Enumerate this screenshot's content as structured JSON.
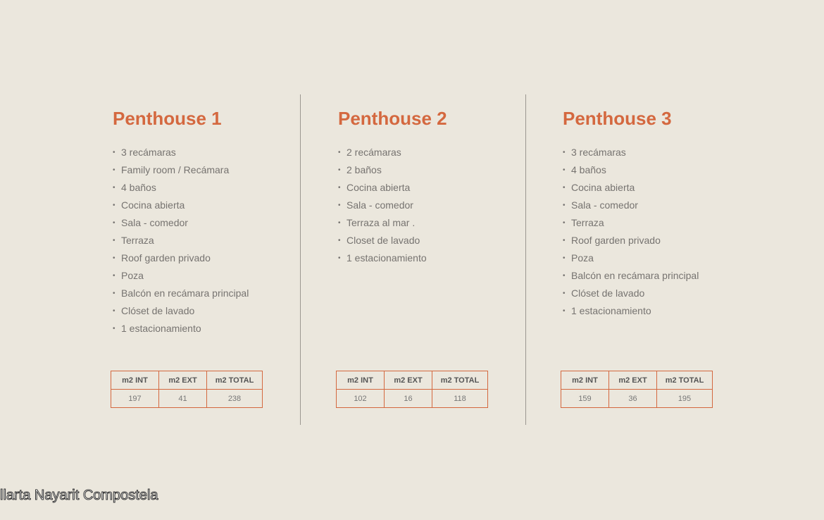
{
  "columns": [
    {
      "title": "Penthouse 1",
      "features": [
        "3 recámaras",
        "Family room / Recámara",
        "4 baños",
        "Cocina abierta",
        "Sala - comedor",
        "Terraza",
        "Roof garden privado",
        "Poza",
        "Balcón en recámara principal",
        "Clóset de lavado",
        "1 estacionamiento"
      ],
      "table": {
        "headers": [
          "m2 INT",
          "m2 EXT",
          "m2 TOTAL"
        ],
        "values": [
          "197",
          "41",
          "238"
        ]
      }
    },
    {
      "title": "Penthouse 2",
      "features": [
        "2 recámaras",
        "2 baños",
        "Cocina abierta",
        "Sala - comedor",
        "Terraza al mar .",
        "Closet de lavado",
        "1 estacionamiento"
      ],
      "table": {
        "headers": [
          "m2 INT",
          "m2 EXT",
          "m2 TOTAL"
        ],
        "values": [
          "102",
          "16",
          "118"
        ]
      }
    },
    {
      "title": "Penthouse 3",
      "features": [
        "3 recámaras",
        "4 baños",
        "Cocina abierta",
        "Sala - comedor",
        "Terraza",
        "Roof garden privado",
        "Poza",
        "Balcón en recámara principal",
        "Clóset de lavado",
        "1 estacionamiento"
      ],
      "table": {
        "headers": [
          "m2 INT",
          "m2 EXT",
          "m2 TOTAL"
        ],
        "values": [
          "159",
          "36",
          "195"
        ]
      }
    }
  ],
  "footer": "llarta Nayarit Compostela"
}
